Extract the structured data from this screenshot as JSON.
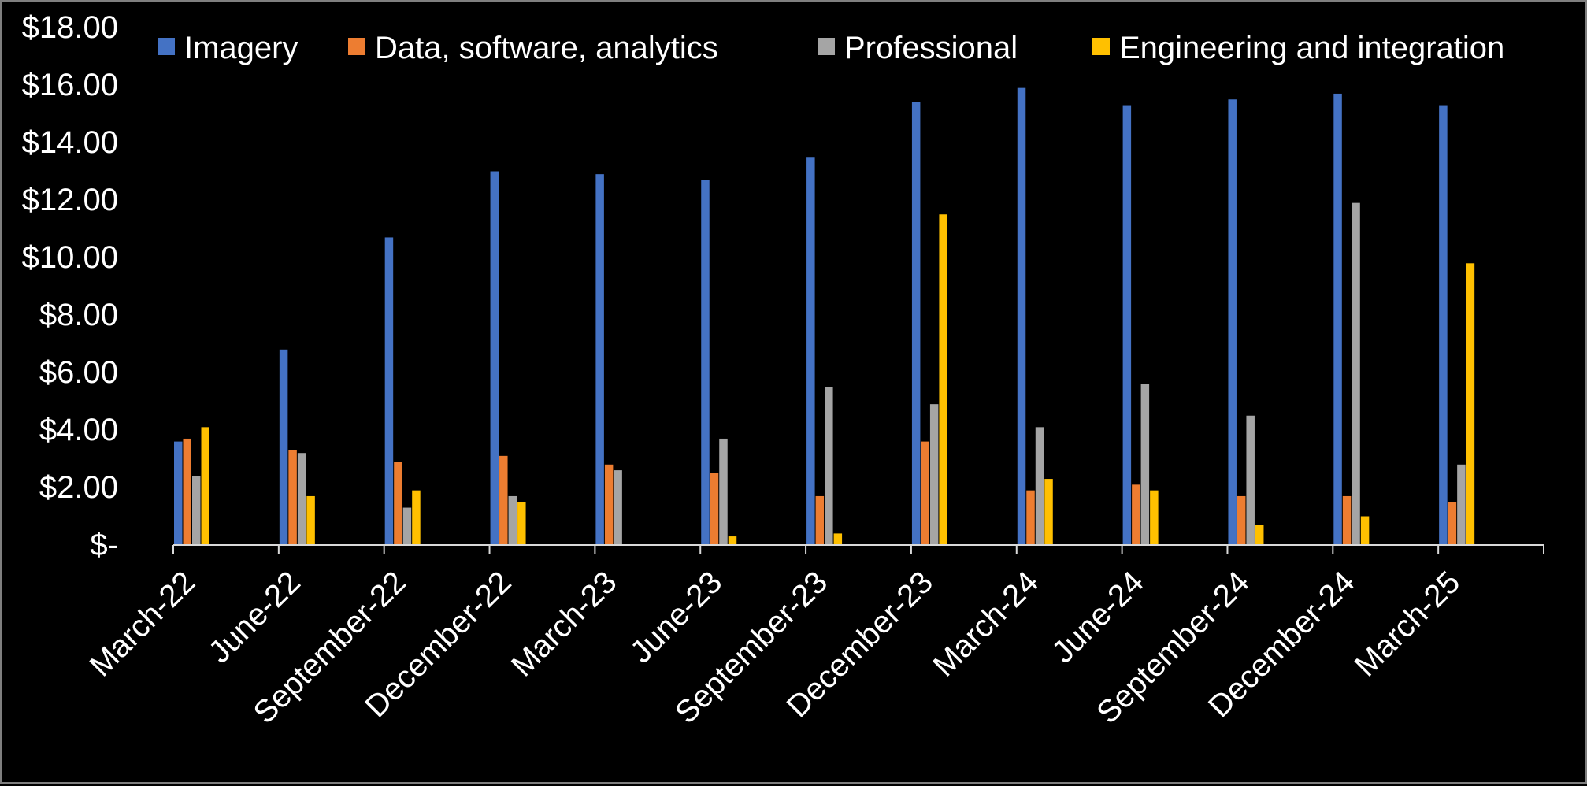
{
  "chart_data": {
    "type": "bar",
    "title": "",
    "xlabel": "",
    "ylabel": "",
    "ylim": [
      0,
      18
    ],
    "y_ticks": [
      0,
      2,
      4,
      6,
      8,
      10,
      12,
      14,
      16,
      18
    ],
    "y_tick_labels": [
      "$-",
      "$2.00",
      "$4.00",
      "$6.00",
      "$8.00",
      "$10.00",
      "$12.00",
      "$14.00",
      "$16.00",
      "$18.00"
    ],
    "grid": false,
    "legend_position": "top",
    "categories": [
      "March-22",
      "June-22",
      "September-22",
      "December-22",
      "March-23",
      "June-23",
      "September-23",
      "December-23",
      "March-24",
      "June-24",
      "September-24",
      "December-24",
      "March-25"
    ],
    "series": [
      {
        "name": "Imagery",
        "color": "#4472c4",
        "values": [
          3.6,
          6.8,
          10.7,
          13.0,
          12.9,
          12.7,
          13.5,
          15.4,
          15.9,
          15.3,
          15.5,
          15.7,
          15.3
        ]
      },
      {
        "name": "Data, software, analytics",
        "color": "#ed7d31",
        "values": [
          3.7,
          3.3,
          2.9,
          3.1,
          2.8,
          2.5,
          1.7,
          3.6,
          1.9,
          2.1,
          1.7,
          1.7,
          1.5
        ]
      },
      {
        "name": "Professional",
        "color": "#a5a5a5",
        "values": [
          2.4,
          3.2,
          1.3,
          1.7,
          2.6,
          3.7,
          5.5,
          4.9,
          4.1,
          5.6,
          4.5,
          11.9,
          2.8
        ]
      },
      {
        "name": "Engineering and integration",
        "color": "#ffc000",
        "values": [
          4.1,
          1.7,
          1.9,
          1.5,
          0,
          0.3,
          0.4,
          11.5,
          2.3,
          1.9,
          0.7,
          1.0,
          9.8
        ]
      }
    ]
  }
}
